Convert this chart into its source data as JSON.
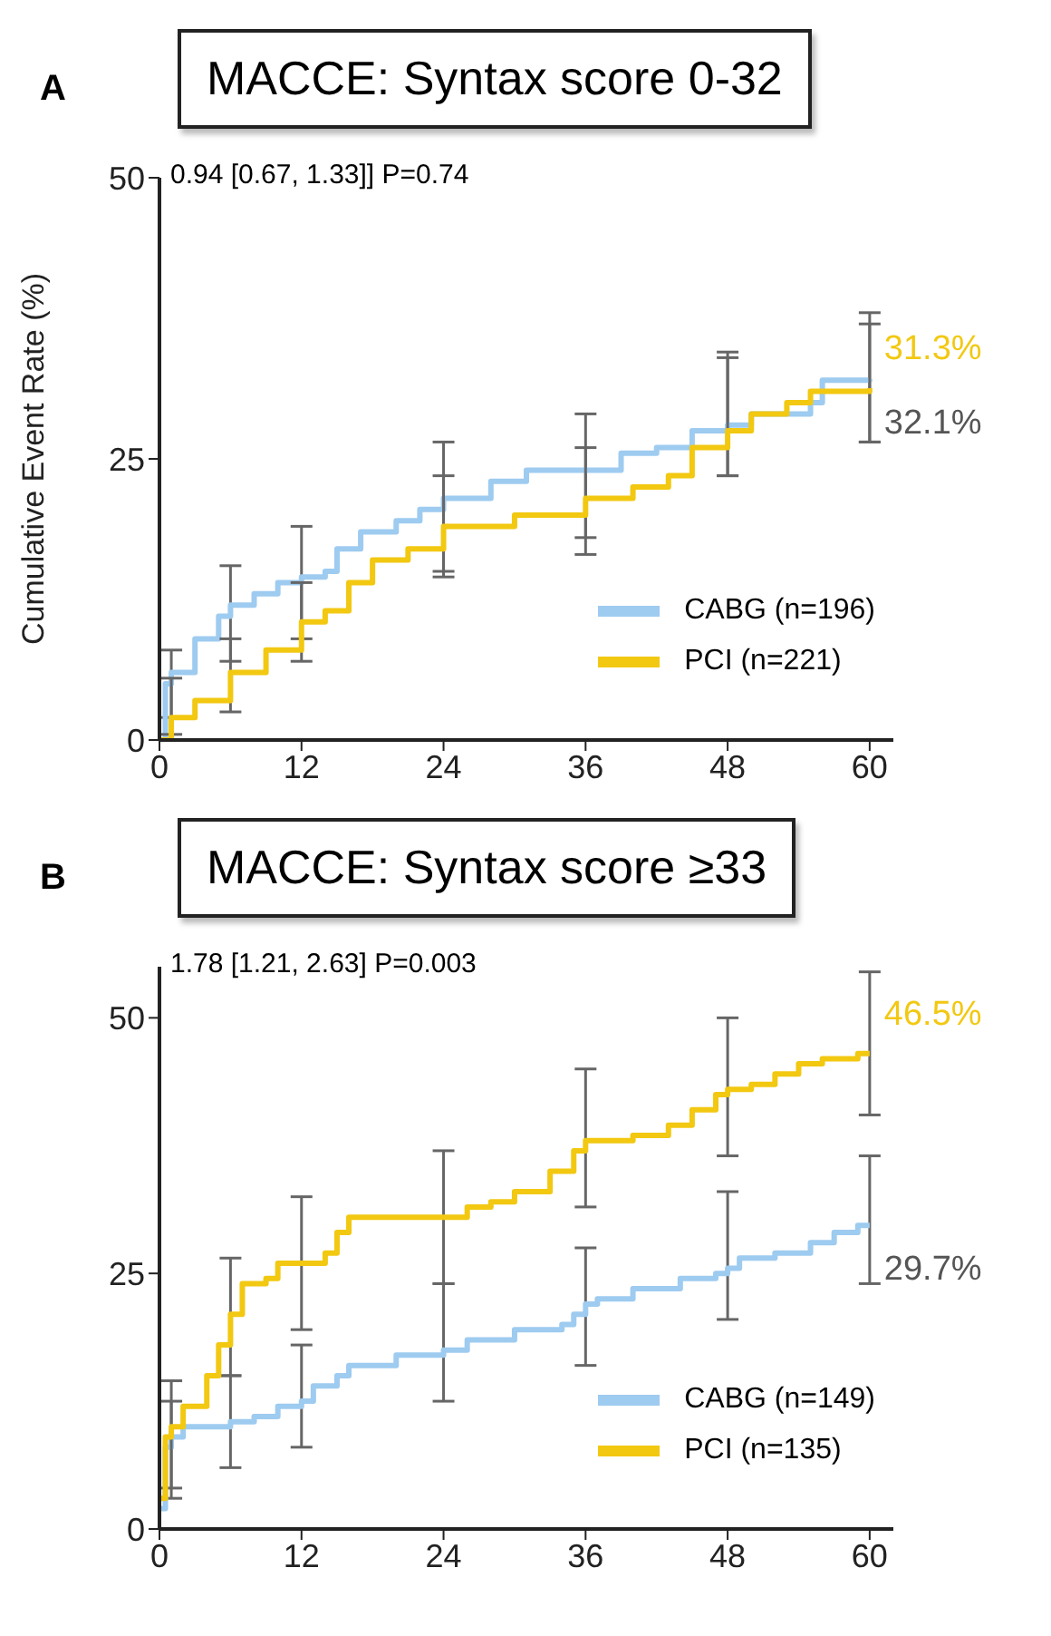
{
  "chart_data": [
    {
      "type": "step",
      "title": "MACCE: Syntax score 0-32",
      "ylabel": "Cumulative Event Rate (%)",
      "xlim": [
        0,
        62
      ],
      "xticks": [
        0,
        12,
        24,
        36,
        48,
        60
      ],
      "ylim": [
        0,
        50
      ],
      "yticks": [
        0,
        25,
        50
      ],
      "grid": false,
      "legend": "bottom right",
      "marker": "none",
      "line_style": "solid",
      "annotations": [
        "A",
        "0.94 [0.67, 1.33]] P=0.74",
        "31.3%",
        "32.1%"
      ],
      "series": [
        {
          "name": "CABG (n=196)",
          "color": "#9ecbf0",
          "x": [
            0,
            0.5,
            1,
            3,
            5,
            6,
            8,
            10,
            12,
            14,
            15,
            17,
            20,
            22,
            24,
            26,
            28,
            31,
            36,
            39,
            42,
            45,
            48,
            50,
            55,
            56,
            60
          ],
          "values": [
            0,
            5,
            6,
            9,
            11,
            12,
            13,
            14,
            14.5,
            15,
            17,
            18.5,
            19.5,
            20.5,
            21.5,
            21.5,
            23,
            24,
            24,
            25.5,
            26,
            27.5,
            28,
            29,
            30,
            32,
            32.1
          ],
          "errors": [
            null,
            null,
            [
              2,
              8
            ],
            null,
            null,
            [
              7,
              15.5
            ],
            null,
            null,
            [
              9,
              19
            ],
            null,
            null,
            null,
            null,
            null,
            [
              15,
              26.5
            ],
            null,
            null,
            null,
            [
              18,
              29
            ],
            null,
            null,
            null,
            [
              23.5,
              34
            ],
            null,
            null,
            null,
            [
              26.5,
              38
            ]
          ]
        },
        {
          "name": "PCI (n=221)",
          "color": "#f2c811",
          "x": [
            0,
            1,
            3,
            6,
            9,
            12,
            14,
            16,
            18,
            21,
            24,
            30,
            36,
            40,
            43,
            45,
            48,
            50,
            53,
            55,
            60
          ],
          "values": [
            0,
            2,
            3.5,
            6,
            8,
            10.5,
            11.5,
            14,
            16,
            17,
            19,
            20,
            21.5,
            22.5,
            23.5,
            26,
            27.5,
            29,
            30,
            31,
            31.3
          ],
          "errors": [
            null,
            [
              0.5,
              5.5
            ],
            null,
            [
              2.5,
              9
            ],
            null,
            [
              7,
              14
            ],
            null,
            null,
            null,
            null,
            [
              14.5,
              23.5
            ],
            null,
            [
              16.5,
              26
            ],
            null,
            null,
            null,
            [
              23.5,
              34.5
            ],
            null,
            null,
            null,
            [
              26.5,
              37
            ]
          ]
        }
      ]
    },
    {
      "type": "step",
      "title": "MACCE: Syntax score ≥33",
      "xlim": [
        0,
        62
      ],
      "xticks": [
        0,
        12,
        24,
        36,
        48,
        60
      ],
      "ylim": [
        0,
        55
      ],
      "yticks": [
        0,
        25,
        50
      ],
      "grid": false,
      "legend": "bottom right",
      "marker": "none",
      "line_style": "solid",
      "annotations": [
        "B",
        "1.78 [1.21, 2.63] P=0.003",
        "46.5%",
        "29.7%"
      ],
      "series": [
        {
          "name": "CABG (n=149)",
          "color": "#9ecbf0",
          "x": [
            0,
            0.5,
            1,
            2,
            6,
            8,
            10,
            12,
            13,
            15,
            16,
            20,
            24,
            26,
            30,
            34,
            35,
            36,
            37,
            40,
            44,
            47,
            48,
            49,
            52,
            55,
            57,
            59,
            60
          ],
          "values": [
            2,
            8,
            9,
            10,
            10.5,
            11,
            12,
            12.5,
            14,
            15,
            16,
            17,
            17.5,
            18.5,
            19.5,
            20,
            21,
            22,
            22.5,
            23.5,
            24.5,
            25,
            25.5,
            26.5,
            27,
            28,
            29,
            29.7,
            29.7
          ],
          "errors": [
            null,
            null,
            [
              3,
              12.5
            ],
            null,
            [
              6,
              15
            ],
            null,
            null,
            [
              8,
              18
            ],
            null,
            null,
            null,
            null,
            [
              12.5,
              24
            ],
            null,
            null,
            null,
            null,
            [
              16,
              27.5
            ],
            null,
            null,
            null,
            null,
            [
              20.5,
              33
            ],
            null,
            null,
            null,
            null,
            null,
            [
              24,
              36.5
            ]
          ]
        },
        {
          "name": "PCI (n=135)",
          "color": "#f2c811",
          "x": [
            0,
            0.5,
            1,
            2,
            4,
            5,
            6,
            7,
            9,
            10,
            12,
            14,
            15,
            16,
            22,
            24,
            26,
            28,
            30,
            32,
            33,
            35,
            36,
            39,
            40,
            43,
            45,
            47,
            48,
            50,
            52,
            54,
            56,
            59,
            60
          ],
          "values": [
            3,
            9,
            10,
            12,
            15,
            18,
            21,
            24,
            24.5,
            26,
            26,
            27,
            29,
            30.5,
            30.5,
            30.5,
            31.5,
            32,
            33,
            33,
            35,
            37,
            38,
            38,
            38.5,
            39.5,
            41,
            42.5,
            43,
            43.5,
            44.5,
            45.5,
            46,
            46.5,
            46.5
          ],
          "errors": [
            null,
            null,
            [
              4,
              14.5
            ],
            null,
            null,
            null,
            [
              15,
              26.5
            ],
            null,
            null,
            null,
            [
              19.5,
              32.5
            ],
            null,
            null,
            null,
            null,
            [
              24,
              37
            ],
            null,
            null,
            null,
            null,
            null,
            null,
            [
              31.5,
              45
            ],
            null,
            null,
            null,
            null,
            null,
            [
              36.5,
              50
            ],
            null,
            null,
            null,
            null,
            null,
            [
              40.5,
              54.5
            ]
          ]
        }
      ]
    }
  ]
}
